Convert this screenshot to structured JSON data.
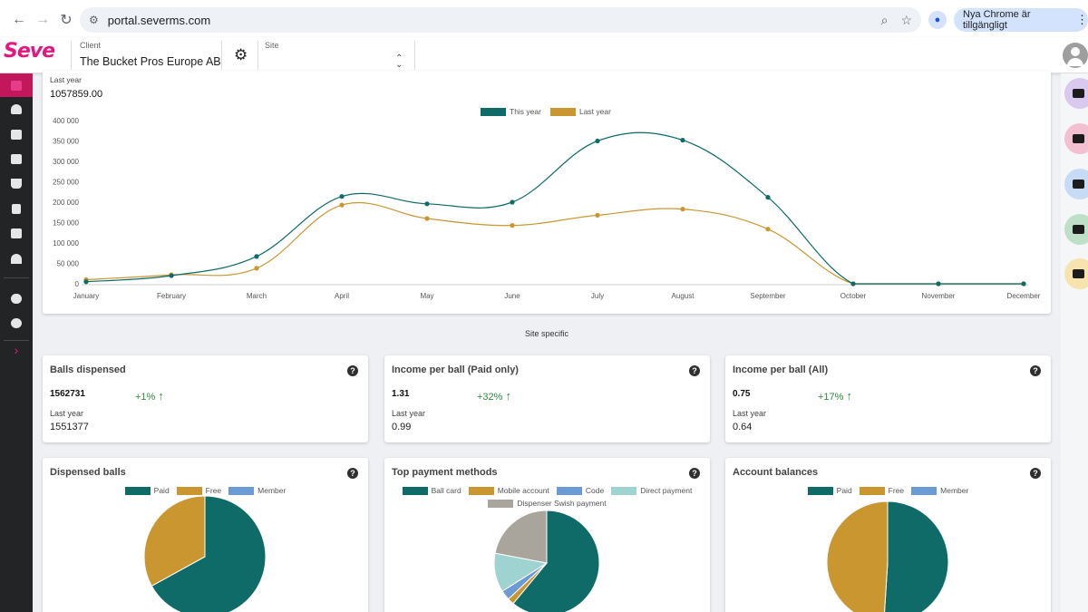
{
  "browser": {
    "url": "portal.severms.com",
    "update_label": "Nya Chrome är tillgängligt"
  },
  "header": {
    "logo": "Seve",
    "client_label": "Client",
    "client_value": "The Bucket Pros Europe AB",
    "site_label": "Site"
  },
  "colors": {
    "accent": "#c2185b",
    "this_year": "#0e6b68",
    "last_year": "#c9962f",
    "paid": "#0e6b68",
    "free": "#c9962f",
    "member": "#6b9bd2",
    "mobile": "#c9962f",
    "code": "#6b9bd2",
    "direct": "#9fd3d1",
    "swish": "#aaa59c"
  },
  "sidebar": {
    "items": [
      "dashboard-icon",
      "users-icon",
      "badge-icon",
      "tickets-icon",
      "cart-icon",
      "receipt-icon",
      "report-icon",
      "bank-icon",
      "admin-icon",
      "help-icon",
      "expand-icon"
    ]
  },
  "rail": {
    "items": [
      {
        "icon": "add-user-icon",
        "bg": "#d9c9ee"
      },
      {
        "icon": "ticket-icon",
        "bg": "#f3c0d2"
      },
      {
        "icon": "add-card-icon",
        "bg": "#c7dbf5"
      },
      {
        "icon": "send-icon",
        "bg": "#bfe0c8"
      },
      {
        "icon": "wallet-icon",
        "bg": "#f6e3ae"
      }
    ]
  },
  "top_card": {
    "last_year_label": "Last year",
    "last_year_value": "1057859.00"
  },
  "section_label": "Site specific",
  "kpis": [
    {
      "title": "Balls dispensed",
      "value": "1562731",
      "change": "+1%",
      "last_year_label": "Last year",
      "last_year_value": "1551377"
    },
    {
      "title": "Income per ball (Paid only)",
      "value": "1.31",
      "change": "+32%",
      "last_year_label": "Last year",
      "last_year_value": "0.99"
    },
    {
      "title": "Income per ball (All)",
      "value": "0.75",
      "change": "+17%",
      "last_year_label": "Last year",
      "last_year_value": "0.64"
    }
  ],
  "pie_cards": [
    {
      "title": "Dispensed balls",
      "legend": [
        "Paid",
        "Free",
        "Member"
      ]
    },
    {
      "title": "Top payment methods",
      "legend": [
        "Ball card",
        "Mobile account",
        "Code",
        "Direct payment",
        "Dispenser Swish payment"
      ]
    },
    {
      "title": "Account balances",
      "legend": [
        "Paid",
        "Free",
        "Member"
      ]
    }
  ],
  "chart_data": [
    {
      "type": "line",
      "categories": [
        "January",
        "February",
        "March",
        "April",
        "May",
        "June",
        "July",
        "August",
        "September",
        "October",
        "November",
        "December"
      ],
      "series": [
        {
          "name": "This year",
          "values": [
            5000,
            20000,
            67000,
            214000,
            196000,
            200000,
            350000,
            352000,
            212000,
            0,
            0,
            0
          ]
        },
        {
          "name": "Last year",
          "values": [
            10000,
            22000,
            38000,
            193000,
            160000,
            143000,
            168000,
            183000,
            134000,
            0,
            0,
            0
          ]
        }
      ],
      "yticks": [
        "0",
        "50 000",
        "100 000",
        "150 000",
        "200 000",
        "250 000",
        "300 000",
        "350 000",
        "400 000"
      ],
      "ylim": [
        0,
        400000
      ],
      "legend_position": "top-center",
      "grid": false
    },
    {
      "type": "pie",
      "labels": [
        "Paid",
        "Free",
        "Member"
      ],
      "values": [
        67,
        33,
        0
      ]
    },
    {
      "type": "pie",
      "labels": [
        "Ball card",
        "Mobile account",
        "Code",
        "Direct payment",
        "Dispenser Swish payment"
      ],
      "values": [
        61,
        2,
        3,
        12,
        22
      ]
    },
    {
      "type": "pie",
      "labels": [
        "Paid",
        "Free",
        "Member"
      ],
      "values": [
        51,
        49,
        0
      ]
    }
  ]
}
